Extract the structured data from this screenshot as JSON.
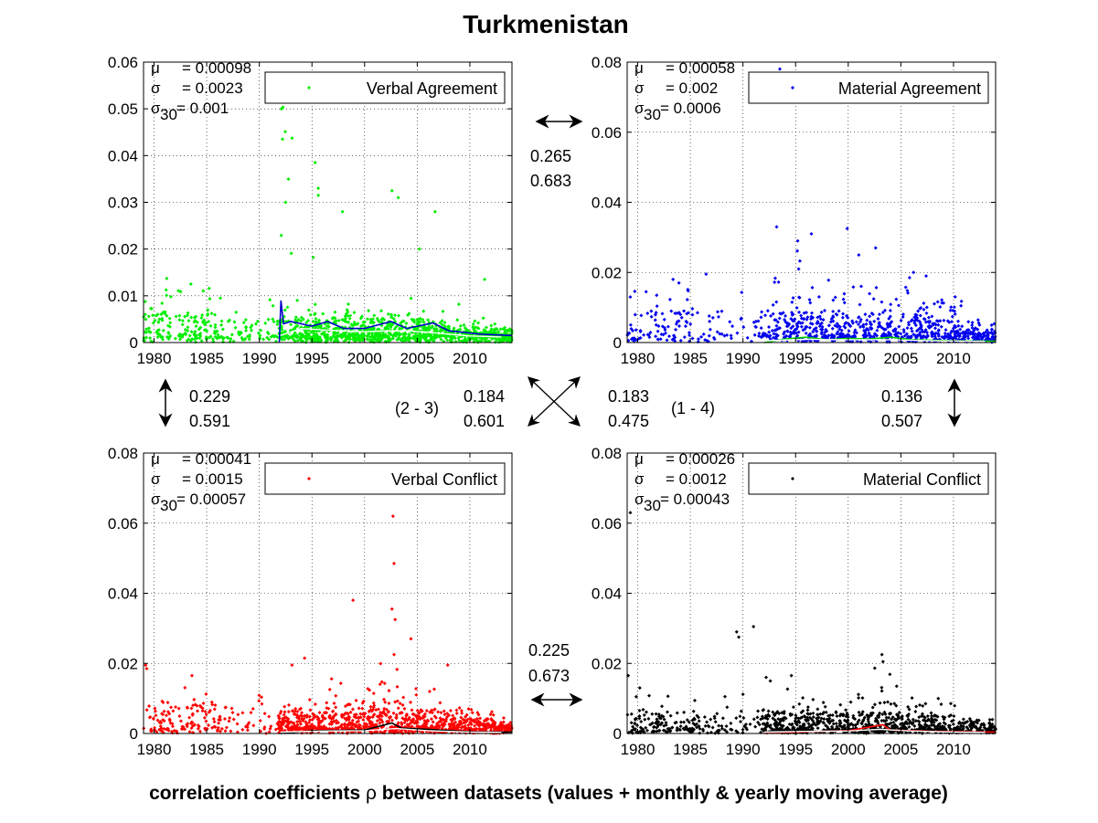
{
  "page": {
    "title": "Turkmenistan",
    "footer": {
      "before": "correlation coefficients ",
      "symbol": "ρ",
      "after": " between datasets (values + monthly & yearly moving average)"
    }
  },
  "colors": {
    "verbal_agreement": "#00ee00",
    "material_agreement": "#0000ee",
    "verbal_conflict": "#ff0000",
    "material_conflict": "#000000"
  },
  "stat_labels": {
    "mu": "μ",
    "sigma": "σ",
    "sigma30_sub": "30"
  },
  "chart_data": [
    {
      "id": "verbal_agreement",
      "type": "scatter",
      "series": [
        {
          "name": "Verbal Agreement"
        }
      ],
      "stats": {
        "mu": "= 0.00098",
        "sigma": "= 0.0023",
        "sigma30": "= 0.001"
      },
      "xlim": [
        1979,
        2014
      ],
      "ylim": [
        0,
        0.06
      ],
      "yticks": [
        "0",
        "0.01",
        "0.02",
        "0.03",
        "0.04",
        "0.05",
        "0.06"
      ],
      "xticks": [
        "1980",
        "1985",
        "1990",
        "1995",
        "2000",
        "2005",
        "2010"
      ],
      "grid": true,
      "legend": "top-right",
      "color": "#00ee00",
      "profile": {
        "base": 0.0015,
        "spread": 0.004,
        "peakYear": 1992.3,
        "peakVal": 0.055,
        "density": 1.0,
        "gap": [
          1986,
          1991.8
        ],
        "gapDensity": 0.25,
        "early": 0.006
      },
      "outliers": [
        [
          1992.1,
          0.05
        ],
        [
          1992.2,
          0.0435
        ],
        [
          1995.3,
          0.0385
        ],
        [
          1995.6,
          0.033
        ],
        [
          1995.6,
          0.0315
        ],
        [
          2002.6,
          0.0325
        ],
        [
          2003.2,
          0.031
        ],
        [
          2006.7,
          0.028
        ],
        [
          1992.5,
          0.03
        ],
        [
          1997.9,
          0.028
        ],
        [
          2005.2,
          0.02
        ],
        [
          2011.4,
          0.0135
        ],
        [
          1981.2,
          0.0137
        ],
        [
          1983.5,
          0.0125
        ],
        [
          1986.3,
          0.0095
        ]
      ],
      "avgColor": "#0000cc",
      "avgLine": [
        [
          1991.9,
          0
        ],
        [
          1992.05,
          0.009
        ],
        [
          1992.3,
          0.004
        ],
        [
          1993,
          0.0045
        ],
        [
          1995,
          0.0035
        ],
        [
          1996.5,
          0.0045
        ],
        [
          1998,
          0.003
        ],
        [
          2000,
          0.003
        ],
        [
          2002.5,
          0.0045
        ],
        [
          2004,
          0.003
        ],
        [
          2006.5,
          0.0042
        ],
        [
          2008,
          0.0025
        ],
        [
          2011,
          0.0018
        ],
        [
          2014,
          0.0015
        ]
      ],
      "yearlyColor": "#ffffff",
      "yearlyLine": [
        [
          1992,
          0.0015
        ],
        [
          1994,
          0.003
        ],
        [
          1996,
          0.0027
        ],
        [
          1998,
          0.0025
        ],
        [
          2000,
          0.0023
        ],
        [
          2002,
          0.0025
        ],
        [
          2004,
          0.0025
        ],
        [
          2006,
          0.0022
        ],
        [
          2008,
          0.0018
        ],
        [
          2010,
          0.0014
        ],
        [
          2013,
          0.0012
        ]
      ],
      "seed": 11
    },
    {
      "id": "material_agreement",
      "type": "scatter",
      "series": [
        {
          "name": "Material Agreement"
        }
      ],
      "stats": {
        "mu": "= 0.00058",
        "sigma": "= 0.002",
        "sigma30": "= 0.0006"
      },
      "xlim": [
        1979,
        2014
      ],
      "ylim": [
        0,
        0.08
      ],
      "yticks": [
        "0",
        "0.02",
        "0.04",
        "0.06",
        "0.08"
      ],
      "xticks": [
        "1980",
        "1985",
        "1990",
        "1995",
        "2000",
        "2005",
        "2010"
      ],
      "grid": true,
      "legend": "top-right",
      "color": "#0000ee",
      "profile": {
        "base": 0.002,
        "spread": 0.008,
        "peakYear": 1995,
        "peakVal": 0.03,
        "density": 0.75,
        "gap": [
          1988,
          1991.7
        ],
        "gapDensity": 0.15,
        "early": 0.008
      },
      "outliers": [
        [
          1993.5,
          0.078
        ],
        [
          1993.2,
          0.033
        ],
        [
          1996.5,
          0.031
        ],
        [
          1995.2,
          0.029
        ],
        [
          1999.9,
          0.0325
        ],
        [
          2002.6,
          0.027
        ],
        [
          2001,
          0.025
        ],
        [
          2006.2,
          0.02
        ],
        [
          2007.4,
          0.019
        ],
        [
          1986.5,
          0.0195
        ],
        [
          1979.3,
          0.013
        ],
        [
          1981.8,
          0.0135
        ],
        [
          1980.8,
          0.0145
        ]
      ],
      "avgColor": "#00cc00",
      "avgLine": [
        [
          1992,
          0
        ],
        [
          1994,
          0.001
        ],
        [
          1996,
          0.0015
        ],
        [
          1998,
          0.0008
        ],
        [
          2000,
          0.0012
        ],
        [
          2002,
          0.001
        ],
        [
          2004,
          0.0015
        ],
        [
          2006,
          0.0008
        ],
        [
          2010,
          0.0005
        ],
        [
          2014,
          0.0004
        ]
      ],
      "yearlyColor": "#ffffff",
      "yearlyLine": [
        [
          1992,
          0.0005
        ],
        [
          1996,
          0.0009
        ],
        [
          2000,
          0.0008
        ],
        [
          2004,
          0.0008
        ],
        [
          2008,
          0.0005
        ],
        [
          2013,
          0.0003
        ]
      ],
      "seed": 23
    },
    {
      "id": "verbal_conflict",
      "type": "scatter",
      "series": [
        {
          "name": "Verbal Conflict"
        }
      ],
      "stats": {
        "mu": "= 0.00041",
        "sigma": "= 0.0015",
        "sigma30": "= 0.00057"
      },
      "xlim": [
        1979,
        2014
      ],
      "ylim": [
        0,
        0.08
      ],
      "yticks": [
        "0",
        "0.02",
        "0.04",
        "0.06",
        "0.08"
      ],
      "xticks": [
        "1980",
        "1985",
        "1990",
        "1995",
        "2000",
        "2005",
        "2010"
      ],
      "grid": true,
      "legend": "top-right",
      "color": "#ff0000",
      "profile": {
        "base": 0.0015,
        "spread": 0.006,
        "peakYear": 2002.7,
        "peakVal": 0.02,
        "density": 0.95,
        "gap": [
          1986.5,
          1991.8
        ],
        "gapDensity": 0.2,
        "early": 0.008
      },
      "outliers": [
        [
          2002.7,
          0.062
        ],
        [
          2002.8,
          0.0485
        ],
        [
          2002.6,
          0.0355
        ],
        [
          2002.9,
          0.0325
        ],
        [
          2002.8,
          0.0225
        ],
        [
          1998.9,
          0.038
        ],
        [
          2004.4,
          0.027
        ],
        [
          1994.3,
          0.0215
        ],
        [
          1993.1,
          0.0195
        ],
        [
          2007.9,
          0.0195
        ],
        [
          1979.2,
          0.0195
        ],
        [
          1979.3,
          0.0185
        ],
        [
          1983.6,
          0.0165
        ]
      ],
      "avgColor": "#000000",
      "avgLine": [
        [
          1992,
          0
        ],
        [
          1995,
          0.0008
        ],
        [
          2000,
          0.001
        ],
        [
          2002.6,
          0.003
        ],
        [
          2003.5,
          0.0015
        ],
        [
          2006,
          0.0012
        ],
        [
          2010,
          0.0005
        ],
        [
          2014,
          0.0004
        ]
      ],
      "yearlyColor": "#ffffff",
      "yearlyLine": [
        [
          1992,
          0.0004
        ],
        [
          1996,
          0.0007
        ],
        [
          2000,
          0.0008
        ],
        [
          2003,
          0.0014
        ],
        [
          2006,
          0.0008
        ],
        [
          2010,
          0.0004
        ],
        [
          2013,
          0.0003
        ]
      ],
      "seed": 37
    },
    {
      "id": "material_conflict",
      "type": "scatter",
      "series": [
        {
          "name": "Material Conflict"
        }
      ],
      "stats": {
        "mu": "= 0.00026",
        "sigma": "= 0.0012",
        "sigma30": "= 0.00043"
      },
      "xlim": [
        1979,
        2014
      ],
      "ylim": [
        0,
        0.08
      ],
      "yticks": [
        "0",
        "0.02",
        "0.04",
        "0.06",
        "0.08"
      ],
      "xticks": [
        "1980",
        "1985",
        "1990",
        "1995",
        "2000",
        "2005",
        "2010"
      ],
      "grid": true,
      "legend": "top-right",
      "color": "#000000",
      "profile": {
        "base": 0.0012,
        "spread": 0.0055,
        "peakYear": 2003.2,
        "peakVal": 0.022,
        "density": 0.9,
        "gap": [
          1986,
          1991.8
        ],
        "gapDensity": 0.2,
        "early": 0.006
      },
      "outliers": [
        [
          1979.3,
          0.063
        ],
        [
          1989.4,
          0.029
        ],
        [
          1989.6,
          0.0275
        ],
        [
          1991,
          0.0305
        ],
        [
          2003.2,
          0.0225
        ],
        [
          2003.3,
          0.0205
        ],
        [
          1979.1,
          0.0165
        ],
        [
          1980.2,
          0.013
        ],
        [
          1992.2,
          0.016
        ],
        [
          1992.6,
          0.015
        ],
        [
          1994.6,
          0.0165
        ],
        [
          2004.6,
          0.0135
        ]
      ],
      "avgColor": "#ff0000",
      "avgLine": [
        [
          1992,
          0
        ],
        [
          1996,
          0.0005
        ],
        [
          2000,
          0.0008
        ],
        [
          2003.3,
          0.0025
        ],
        [
          2004,
          0.001
        ],
        [
          2008,
          0.0006
        ],
        [
          2014,
          0.0004
        ]
      ],
      "yearlyColor": "#ffffff",
      "yearlyLine": [
        [
          1992,
          0.0004
        ],
        [
          1996,
          0.0006
        ],
        [
          2000,
          0.0007
        ],
        [
          2003,
          0.0012
        ],
        [
          2006,
          0.0007
        ],
        [
          2010,
          0.0004
        ],
        [
          2013,
          0.0003
        ]
      ],
      "seed": 53
    }
  ],
  "correlations": {
    "top": {
      "rho": "0.265",
      "avg": "0.683"
    },
    "bottom": {
      "rho": "0.225",
      "avg": "0.673"
    },
    "left": {
      "rho": "0.229",
      "avg": "0.591"
    },
    "right": {
      "rho": "0.136",
      "avg": "0.507"
    },
    "diag_2_3": {
      "label": "(2 - 3)",
      "rho": "0.184",
      "avg": "0.601"
    },
    "diag_1_4": {
      "label": "(1 - 4)",
      "rho": "0.183",
      "avg": "0.475"
    }
  }
}
